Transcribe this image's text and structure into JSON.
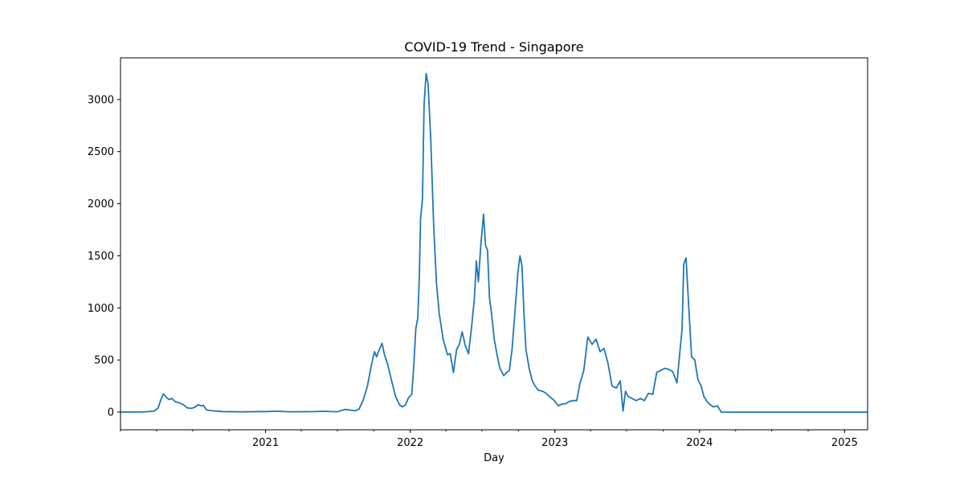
{
  "chart_data": {
    "type": "line",
    "title": "COVID-19 Trend - Singapore",
    "xlabel": "Day",
    "ylabel": "",
    "xlim": [
      "2020-01-01",
      "2025-02-28"
    ],
    "ylim": [
      -170,
      3400
    ],
    "x_tick_labels": [
      "2021",
      "2022",
      "2023",
      "2024",
      "2025"
    ],
    "x_ticks": [
      "2021-01-01",
      "2022-01-01",
      "2023-01-01",
      "2024-01-01",
      "2025-01-01"
    ],
    "y_ticks": [
      0,
      500,
      1000,
      1500,
      2000,
      2500,
      3000
    ],
    "grid": false,
    "legend": "none",
    "line_color": "#1f77b4",
    "series": [
      {
        "points": [
          [
            "2020-01-01",
            0
          ],
          [
            "2020-03-01",
            2
          ],
          [
            "2020-03-25",
            8
          ],
          [
            "2020-04-05",
            40
          ],
          [
            "2020-04-12",
            120
          ],
          [
            "2020-04-18",
            175
          ],
          [
            "2020-04-25",
            145
          ],
          [
            "2020-05-02",
            120
          ],
          [
            "2020-05-10",
            130
          ],
          [
            "2020-05-18",
            100
          ],
          [
            "2020-05-28",
            90
          ],
          [
            "2020-06-08",
            70
          ],
          [
            "2020-06-18",
            40
          ],
          [
            "2020-06-28",
            35
          ],
          [
            "2020-07-08",
            50
          ],
          [
            "2020-07-15",
            70
          ],
          [
            "2020-07-22",
            60
          ],
          [
            "2020-07-28",
            65
          ],
          [
            "2020-08-05",
            20
          ],
          [
            "2020-08-20",
            12
          ],
          [
            "2020-09-15",
            5
          ],
          [
            "2020-11-01",
            2
          ],
          [
            "2021-01-01",
            5
          ],
          [
            "2021-02-01",
            8
          ],
          [
            "2021-03-01",
            3
          ],
          [
            "2021-05-01",
            4
          ],
          [
            "2021-06-01",
            7
          ],
          [
            "2021-07-01",
            3
          ],
          [
            "2021-07-20",
            25
          ],
          [
            "2021-08-01",
            20
          ],
          [
            "2021-08-15",
            12
          ],
          [
            "2021-08-25",
            30
          ],
          [
            "2021-09-05",
            120
          ],
          [
            "2021-09-15",
            250
          ],
          [
            "2021-09-25",
            450
          ],
          [
            "2021-10-03",
            580
          ],
          [
            "2021-10-08",
            530
          ],
          [
            "2021-10-15",
            600
          ],
          [
            "2021-10-22",
            660
          ],
          [
            "2021-10-28",
            550
          ],
          [
            "2021-11-05",
            460
          ],
          [
            "2021-11-15",
            300
          ],
          [
            "2021-11-25",
            150
          ],
          [
            "2021-12-05",
            70
          ],
          [
            "2021-12-12",
            50
          ],
          [
            "2021-12-20",
            70
          ],
          [
            "2021-12-28",
            140
          ],
          [
            "2022-01-05",
            170
          ],
          [
            "2022-01-10",
            450
          ],
          [
            "2022-01-15",
            800
          ],
          [
            "2022-01-20",
            900
          ],
          [
            "2022-01-24",
            1300
          ],
          [
            "2022-01-27",
            1850
          ],
          [
            "2022-02-01",
            2050
          ],
          [
            "2022-02-05",
            2950
          ],
          [
            "2022-02-10",
            3250
          ],
          [
            "2022-02-15",
            3150
          ],
          [
            "2022-02-22",
            2600
          ],
          [
            "2022-03-01",
            1800
          ],
          [
            "2022-03-08",
            1250
          ],
          [
            "2022-03-15",
            950
          ],
          [
            "2022-03-25",
            700
          ],
          [
            "2022-04-05",
            550
          ],
          [
            "2022-04-12",
            560
          ],
          [
            "2022-04-20",
            380
          ],
          [
            "2022-04-28",
            600
          ],
          [
            "2022-05-05",
            650
          ],
          [
            "2022-05-12",
            770
          ],
          [
            "2022-05-20",
            640
          ],
          [
            "2022-05-28",
            560
          ],
          [
            "2022-06-05",
            820
          ],
          [
            "2022-06-12",
            1100
          ],
          [
            "2022-06-17",
            1450
          ],
          [
            "2022-06-22",
            1250
          ],
          [
            "2022-06-28",
            1600
          ],
          [
            "2022-07-05",
            1900
          ],
          [
            "2022-07-10",
            1600
          ],
          [
            "2022-07-15",
            1550
          ],
          [
            "2022-07-20",
            1100
          ],
          [
            "2022-07-25",
            950
          ],
          [
            "2022-08-01",
            700
          ],
          [
            "2022-08-08",
            550
          ],
          [
            "2022-08-15",
            420
          ],
          [
            "2022-08-25",
            350
          ],
          [
            "2022-09-01",
            380
          ],
          [
            "2022-09-08",
            400
          ],
          [
            "2022-09-15",
            600
          ],
          [
            "2022-09-22",
            950
          ],
          [
            "2022-09-30",
            1350
          ],
          [
            "2022-10-05",
            1500
          ],
          [
            "2022-10-10",
            1400
          ],
          [
            "2022-10-15",
            950
          ],
          [
            "2022-10-20",
            600
          ],
          [
            "2022-10-28",
            420
          ],
          [
            "2022-11-05",
            300
          ],
          [
            "2022-11-12",
            250
          ],
          [
            "2022-11-20",
            210
          ],
          [
            "2022-12-01",
            200
          ],
          [
            "2022-12-10",
            180
          ],
          [
            "2022-12-18",
            150
          ],
          [
            "2022-12-28",
            120
          ],
          [
            "2023-01-10",
            60
          ],
          [
            "2023-01-20",
            80
          ],
          [
            "2023-01-28",
            80
          ],
          [
            "2023-02-05",
            100
          ],
          [
            "2023-02-15",
            110
          ],
          [
            "2023-02-25",
            110
          ],
          [
            "2023-03-05",
            270
          ],
          [
            "2023-03-15",
            400
          ],
          [
            "2023-03-25",
            720
          ],
          [
            "2023-04-05",
            650
          ],
          [
            "2023-04-15",
            700
          ],
          [
            "2023-04-25",
            580
          ],
          [
            "2023-05-05",
            610
          ],
          [
            "2023-05-15",
            470
          ],
          [
            "2023-05-25",
            250
          ],
          [
            "2023-06-05",
            230
          ],
          [
            "2023-06-15",
            300
          ],
          [
            "2023-06-22",
            10
          ],
          [
            "2023-06-28",
            200
          ],
          [
            "2023-07-05",
            150
          ],
          [
            "2023-07-15",
            130
          ],
          [
            "2023-07-25",
            110
          ],
          [
            "2023-08-05",
            130
          ],
          [
            "2023-08-15",
            110
          ],
          [
            "2023-08-25",
            180
          ],
          [
            "2023-09-05",
            170
          ],
          [
            "2023-09-15",
            380
          ],
          [
            "2023-09-25",
            400
          ],
          [
            "2023-10-05",
            420
          ],
          [
            "2023-10-15",
            410
          ],
          [
            "2023-10-25",
            390
          ],
          [
            "2023-11-05",
            280
          ],
          [
            "2023-11-12",
            560
          ],
          [
            "2023-11-18",
            800
          ],
          [
            "2023-11-22",
            1420
          ],
          [
            "2023-11-28",
            1480
          ],
          [
            "2023-12-05",
            990
          ],
          [
            "2023-12-12",
            530
          ],
          [
            "2023-12-20",
            500
          ],
          [
            "2023-12-28",
            310
          ],
          [
            "2024-01-05",
            250
          ],
          [
            "2024-01-12",
            150
          ],
          [
            "2024-01-20",
            100
          ],
          [
            "2024-01-28",
            70
          ],
          [
            "2024-02-05",
            50
          ],
          [
            "2024-02-15",
            60
          ],
          [
            "2024-02-25",
            0
          ],
          [
            "2024-06-01",
            0
          ],
          [
            "2024-12-01",
            0
          ],
          [
            "2025-02-28",
            0
          ]
        ]
      }
    ]
  }
}
